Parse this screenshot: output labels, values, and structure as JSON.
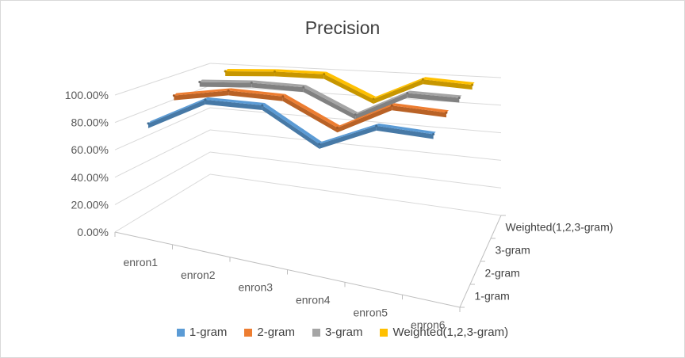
{
  "chart_data": {
    "type": "line",
    "subtype": "3d-line",
    "title": "Precision",
    "categories": [
      "enron1",
      "enron2",
      "enron3",
      "enron4",
      "enron5",
      "enron6"
    ],
    "yticks": [
      "0.00%",
      "20.00%",
      "40.00%",
      "60.00%",
      "80.00%",
      "100.00%"
    ],
    "ylim": [
      0,
      100
    ],
    "series": [
      {
        "name": "1-gram",
        "color": "#5b9bd5",
        "values": [
          80.0,
          100.0,
          99.0,
          78.0,
          92.0,
          90.0
        ]
      },
      {
        "name": "2-gram",
        "color": "#ed7d31",
        "values": [
          93.0,
          99.5,
          98.0,
          80.0,
          97.0,
          95.0
        ]
      },
      {
        "name": "3-gram",
        "color": "#a5a5a5",
        "values": [
          96.0,
          98.0,
          97.0,
          80.0,
          97.5,
          96.5
        ]
      },
      {
        "name": "Weighted(1,2,3-gram)",
        "color": "#ffc000",
        "values": [
          97.0,
          99.0,
          99.0,
          82.0,
          99.0,
          97.0
        ]
      }
    ],
    "depth_labels": [
      "1-gram",
      "2-gram",
      "3-gram",
      "Weighted(1,2,3-gram)"
    ],
    "grid": true,
    "legend_position": "bottom"
  }
}
